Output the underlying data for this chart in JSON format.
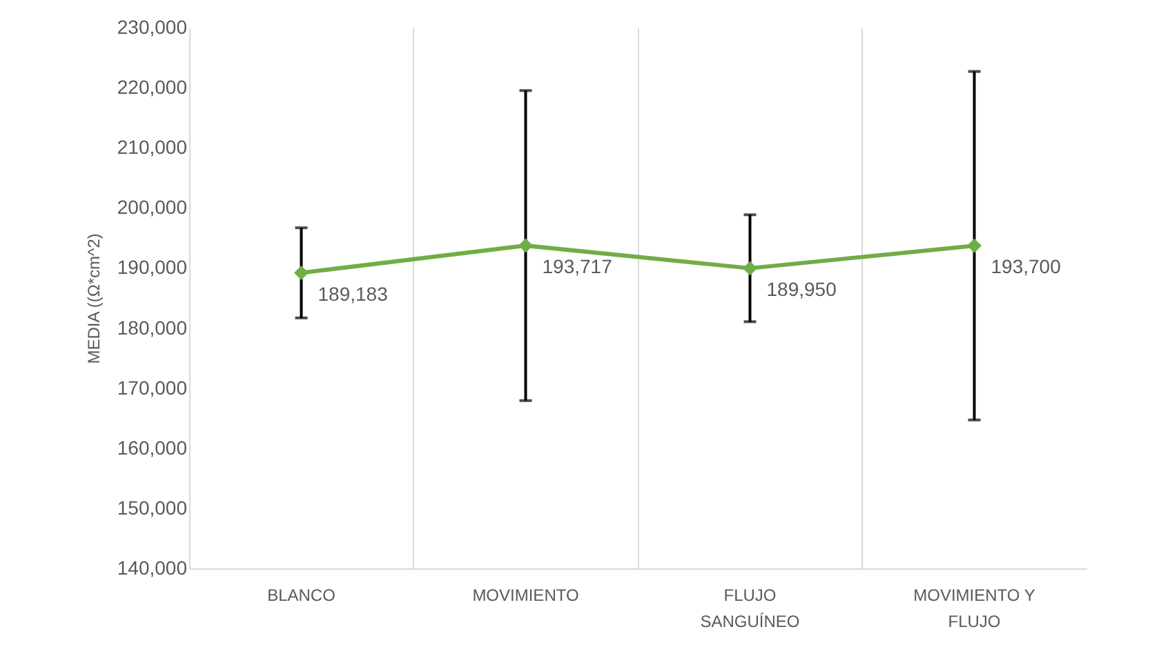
{
  "chart_data": {
    "type": "line",
    "ylabel": "MEDIA ((Ω*cm^2)",
    "categories": [
      "BLANCO",
      "MOVIMIENTO",
      "FLUJO SANGUÍNEO",
      "MOVIMIENTO Y FLUJO"
    ],
    "series": [
      {
        "color": "#70ad47",
        "values": [
          189183,
          193717,
          189950,
          193700
        ],
        "value_labels": [
          "189,183",
          "193,717",
          "189,950",
          "193,700"
        ],
        "errors": [
          7500,
          25800,
          8900,
          29000
        ]
      }
    ],
    "ylim": [
      140000,
      230000
    ],
    "yticks": [
      {
        "value": 140000,
        "label": "140,000"
      },
      {
        "value": 150000,
        "label": "150,000"
      },
      {
        "value": 160000,
        "label": "160,000"
      },
      {
        "value": 170000,
        "label": "170,000"
      },
      {
        "value": 180000,
        "label": "180,000"
      },
      {
        "value": 190000,
        "label": "190,000"
      },
      {
        "value": 200000,
        "label": "200,000"
      },
      {
        "value": 210000,
        "label": "210,000"
      },
      {
        "value": 220000,
        "label": "220,000"
      },
      {
        "value": 230000,
        "label": "230,000"
      }
    ],
    "grid": "x",
    "marker": "diamond"
  }
}
